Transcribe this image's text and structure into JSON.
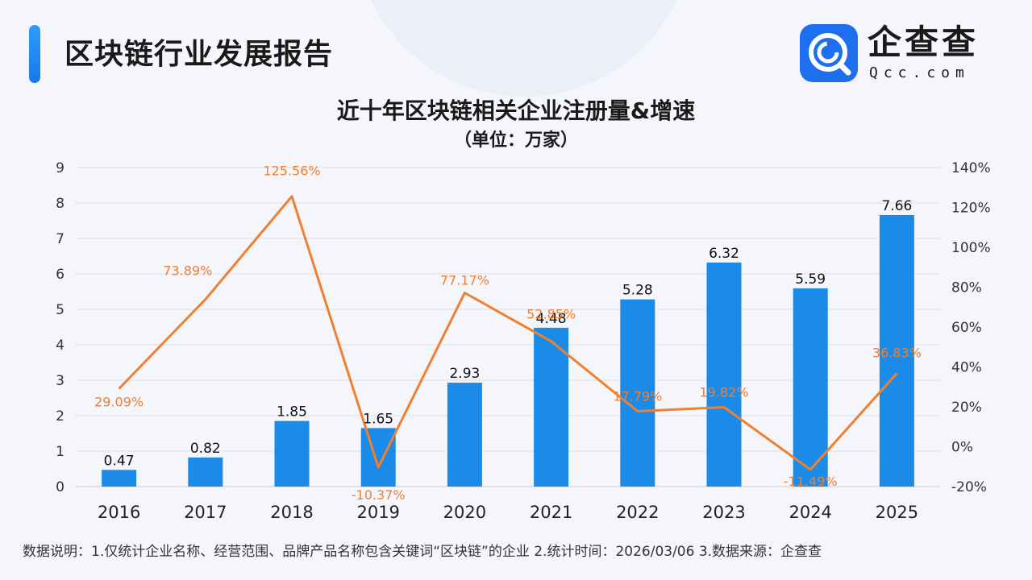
{
  "header": {
    "title": "区块链行业发展报告",
    "logo_name": "企查查",
    "logo_domain": "Qcc.com"
  },
  "colors": {
    "bar": "#1a8be8",
    "line": "#f07f30",
    "accent": "#1e6ff0"
  },
  "chart_data": {
    "type": "bar",
    "title": "近十年区块链相关企业注册量&增速",
    "subtitle": "（单位：万家）",
    "categories": [
      "2016",
      "2017",
      "2018",
      "2019",
      "2020",
      "2021",
      "2022",
      "2023",
      "2024",
      "2025"
    ],
    "series": [
      {
        "type": "bar",
        "axis": "left",
        "values": [
          0.47,
          0.82,
          1.85,
          1.65,
          2.93,
          4.48,
          5.28,
          6.32,
          5.59,
          7.66
        ],
        "labels": [
          "0.47",
          "0.82",
          "1.85",
          "1.65",
          "2.93",
          "4.48",
          "5.28",
          "6.32",
          "5.59",
          "7.66"
        ]
      },
      {
        "type": "line",
        "axis": "right",
        "values": [
          29.09,
          73.89,
          125.56,
          -10.37,
          77.17,
          52.85,
          17.79,
          19.82,
          -11.49,
          36.83
        ],
        "labels": [
          "29.09%",
          "73.89%",
          "125.56%",
          "-10.37%",
          "77.17%",
          "52.85%",
          "17.79%",
          "19.82%",
          "-11.49%",
          "36.83%"
        ]
      }
    ],
    "y_left": {
      "min": 0,
      "max": 9,
      "ticks": [
        "0",
        "1",
        "2",
        "3",
        "4",
        "5",
        "6",
        "7",
        "8",
        "9"
      ]
    },
    "y_right": {
      "min": -20,
      "max": 140,
      "ticks": [
        "-20%",
        "0%",
        "20%",
        "40%",
        "60%",
        "80%",
        "100%",
        "120%",
        "140%"
      ]
    },
    "grid": true
  },
  "footnote": "数据说明：1.仅统计企业名称、经营范围、品牌产品名称包含关键词“区块链”的企业   2.统计时间：2026/03/06    3.数据来源：企查查"
}
